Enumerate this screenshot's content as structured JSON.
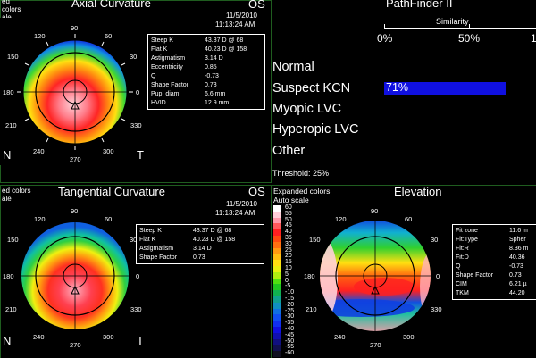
{
  "axial": {
    "title": "Axial Curvature",
    "eye": "OS",
    "date": "11/5/2010",
    "time": "11:13:24 AM",
    "colors_label_line1": "ed",
    "colors_label_line2": "colors",
    "colors_label_line3": "ale",
    "angles": [
      "90",
      "120",
      "60",
      "150",
      "30",
      "180",
      "0",
      "210",
      "330",
      "240",
      "300",
      "270"
    ],
    "nasal": "N",
    "temporal": "T",
    "rows": [
      {
        "k": "Steep K",
        "v": "43.37 D @ 68"
      },
      {
        "k": "Flat K",
        "v": "40.23 D @ 158"
      },
      {
        "k": "Astigmatism",
        "v": "3.14 D"
      },
      {
        "k": "Eccentricity",
        "v": "0.85"
      },
      {
        "k": "Q",
        "v": "-0.73"
      },
      {
        "k": "Shape Factor",
        "v": "0.73"
      },
      {
        "k": "Pup. diam",
        "v": "6.6 mm"
      },
      {
        "k": "HVID",
        "v": "12.9 mm"
      }
    ]
  },
  "pathfinder": {
    "title": "PathFinder II",
    "similarity_label": "Similarity",
    "tick_0": "0%",
    "tick_50": "50%",
    "tick_100": "1",
    "categories": [
      "Normal",
      "Suspect KCN",
      "Myopic LVC",
      "Hyperopic LVC",
      "Other"
    ],
    "suspect_value": "71%",
    "suspect_fraction": 0.71,
    "threshold": "Threshold: 25%",
    "bar_color": "#1010e0"
  },
  "tangential": {
    "title": "Tangential Curvature",
    "eye": "OS",
    "date": "11/5/2010",
    "time": "11:13:24 AM",
    "colors_label_line1": "ed colors",
    "colors_label_line2": "ale",
    "angles": [
      "90",
      "120",
      "60",
      "150",
      "30",
      "180",
      "0",
      "210",
      "330",
      "240",
      "300",
      "270"
    ],
    "nasal": "N",
    "temporal": "T",
    "rows": [
      {
        "k": "Steep K",
        "v": "43.37 D @ 68"
      },
      {
        "k": "Flat K",
        "v": "40.23 D @ 158"
      },
      {
        "k": "Astigmatism",
        "v": "3.14 D"
      },
      {
        "k": "Shape Factor",
        "v": "0.73"
      }
    ]
  },
  "elevation": {
    "title": "Elevation",
    "colors_label": "Expanded colors",
    "auto_scale": "Auto scale",
    "angles": [
      "90",
      "120",
      "60",
      "150",
      "30",
      "180",
      "0",
      "210",
      "330",
      "240",
      "300",
      "270"
    ],
    "scale": [
      {
        "label": "60",
        "color": "#ffffff"
      },
      {
        "label": "55",
        "color": "#ffd0d8"
      },
      {
        "label": "50",
        "color": "#ff9aa8"
      },
      {
        "label": "45",
        "color": "#ff5a5a"
      },
      {
        "label": "40",
        "color": "#ff2020"
      },
      {
        "label": "35",
        "color": "#ff4a10"
      },
      {
        "label": "30",
        "color": "#ff7010"
      },
      {
        "label": "25",
        "color": "#ff9a10"
      },
      {
        "label": "20",
        "color": "#ffc010"
      },
      {
        "label": "15",
        "color": "#ffe010"
      },
      {
        "label": "10",
        "color": "#e8f010"
      },
      {
        "label": "5",
        "color": "#b0ee10"
      },
      {
        "label": "0",
        "color": "#50e010"
      },
      {
        "label": "-5",
        "color": "#20c820"
      },
      {
        "label": "-10",
        "color": "#10b050"
      },
      {
        "label": "-15",
        "color": "#10a090"
      },
      {
        "label": "-20",
        "color": "#1090c0"
      },
      {
        "label": "-25",
        "color": "#1070e0"
      },
      {
        "label": "-30",
        "color": "#1050f0"
      },
      {
        "label": "-35",
        "color": "#1030f0"
      },
      {
        "label": "-40",
        "color": "#1010e0"
      },
      {
        "label": "-45",
        "color": "#1010b0"
      },
      {
        "label": "-50",
        "color": "#101080"
      },
      {
        "label": "-55",
        "color": "#101050"
      },
      {
        "label": "-60",
        "color": "#101020"
      }
    ],
    "rows": [
      {
        "k": "Fit zone",
        "v": "11.6 m"
      },
      {
        "k": "Fit:Type",
        "v": "Spher"
      },
      {
        "k": "Fit:R",
        "v": "8.36 m"
      },
      {
        "k": "Fit:D",
        "v": "40.36"
      },
      {
        "k": "Q",
        "v": "-0.73"
      },
      {
        "k": "Shape Factor",
        "v": "0.73"
      },
      {
        "k": "CIM",
        "v": "6.21 µ"
      },
      {
        "k": "TKM",
        "v": "44.20"
      }
    ]
  }
}
